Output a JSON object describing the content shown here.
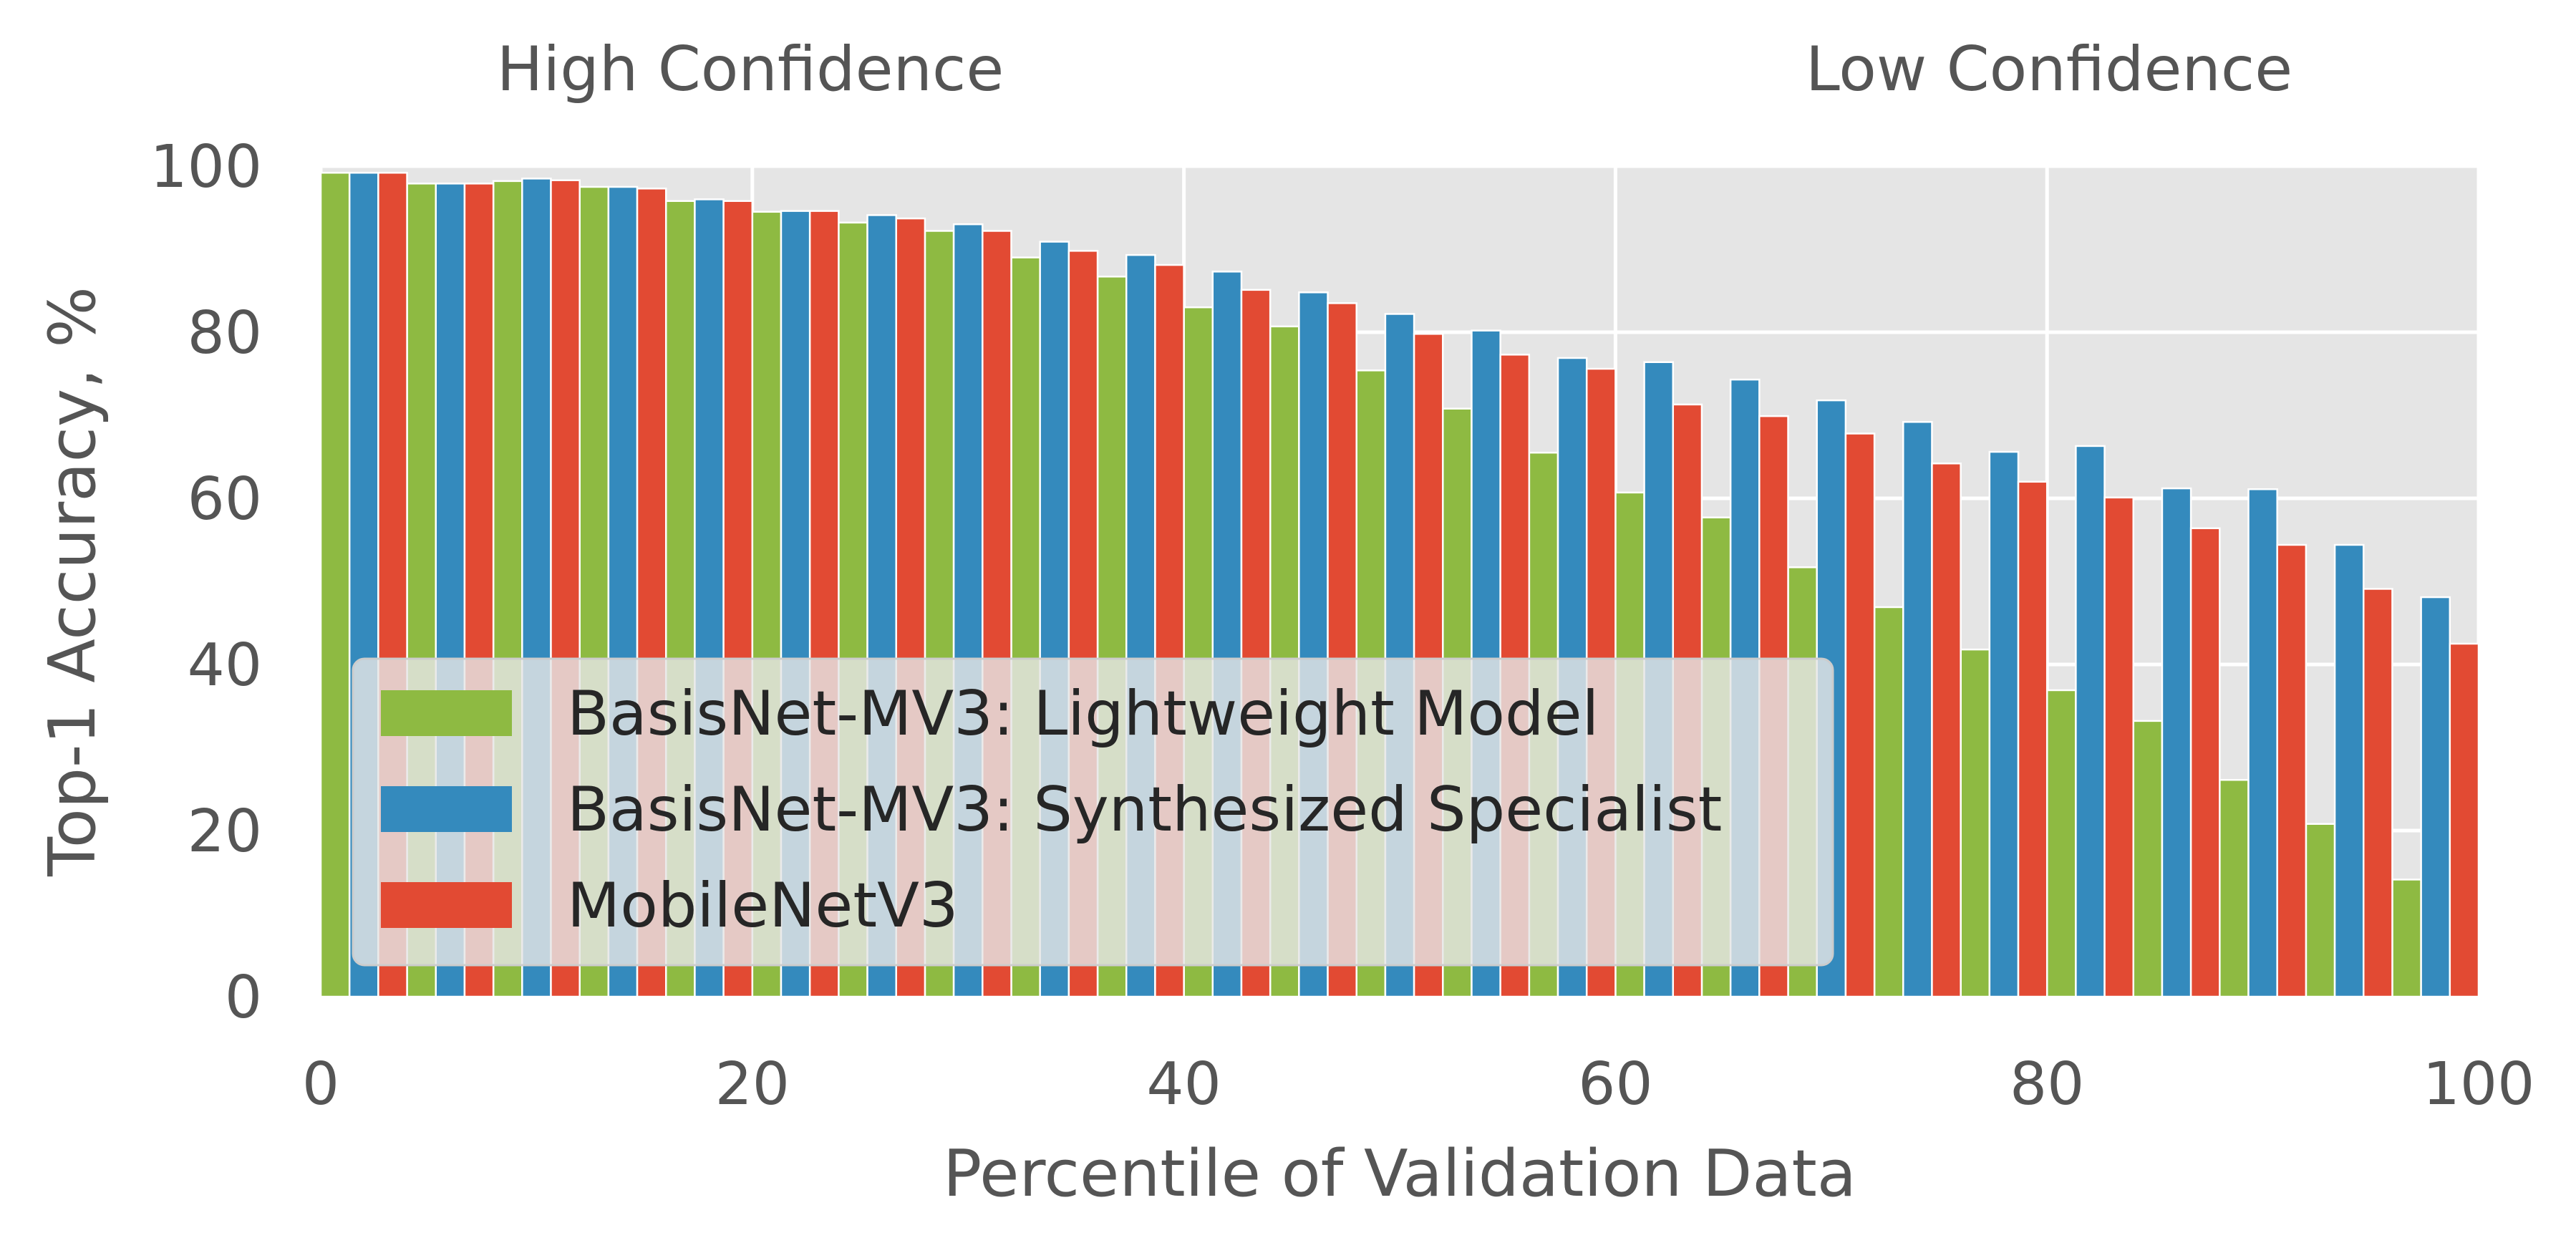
{
  "chart_data": {
    "type": "bar",
    "title": "",
    "xlabel": "Percentile of Validation Data",
    "ylabel": "Top-1 Accuracy, %",
    "xlim": [
      0,
      100
    ],
    "ylim": [
      0,
      100
    ],
    "xticks": [
      "0",
      "20",
      "40",
      "60",
      "80",
      "100"
    ],
    "yticks": [
      "0",
      "20",
      "40",
      "60",
      "80",
      "100"
    ],
    "grid": true,
    "background": "#e5e5e5",
    "annotations": [
      "High Confidence",
      "Low Confidence"
    ],
    "legend_position": "lower-left",
    "categories": [
      0,
      4,
      8,
      12,
      16,
      20,
      24,
      28,
      32,
      36,
      40,
      44,
      48,
      52,
      56,
      60,
      64,
      68,
      72,
      76,
      80,
      84,
      88,
      92,
      96
    ],
    "series": [
      {
        "name": "BasisNet-MV3: Lightweight Model",
        "color": "#8eba42",
        "values": [
          99.2,
          97.9,
          98.2,
          97.5,
          95.8,
          94.5,
          93.2,
          92.2,
          89.0,
          86.7,
          83.0,
          80.7,
          75.4,
          70.8,
          65.5,
          60.7,
          57.7,
          51.7,
          46.9,
          41.8,
          36.9,
          33.2,
          26.1,
          20.8,
          14.1
        ]
      },
      {
        "name": "BasisNet-MV3: Synthesized Specialist",
        "color": "#348abd",
        "values": [
          99.2,
          97.9,
          98.5,
          97.5,
          96.0,
          94.6,
          94.1,
          93.0,
          90.9,
          89.3,
          87.3,
          84.8,
          82.2,
          80.2,
          76.9,
          76.4,
          74.3,
          71.8,
          69.2,
          65.6,
          66.3,
          61.2,
          61.1,
          54.4,
          48.1
        ]
      },
      {
        "name": "MobileNetV3",
        "color": "#e24a33",
        "values": [
          99.2,
          97.9,
          98.3,
          97.3,
          95.8,
          94.6,
          93.7,
          92.2,
          89.8,
          88.1,
          85.1,
          83.5,
          79.8,
          77.3,
          75.6,
          71.3,
          69.9,
          67.8,
          64.2,
          62.0,
          60.1,
          56.4,
          54.4,
          49.1,
          42.5
        ]
      }
    ],
    "legend_order": [
      0,
      1,
      2
    ]
  }
}
